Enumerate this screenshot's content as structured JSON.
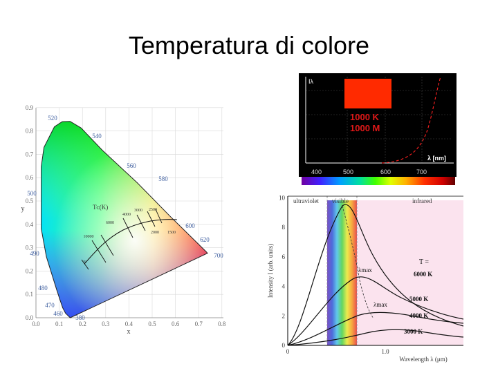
{
  "slide": {
    "title": "Temperatura di colore"
  },
  "cie_diagram": {
    "x_ticks": [
      "0.0",
      "0.1",
      "0.2",
      "0.3",
      "0.4",
      "0.5",
      "0.6",
      "0.7",
      "0.8"
    ],
    "y_ticks": [
      "0.0",
      "0.1",
      "0.2",
      "0.3",
      "0.4",
      "0.5",
      "0.6",
      "0.7",
      "0.8",
      "0.9"
    ],
    "xlabel": "x",
    "ylabel": "y",
    "locus_labels": [
      "520",
      "540",
      "560",
      "580",
      "600",
      "620",
      "700",
      "500",
      "490",
      "480",
      "470",
      "460",
      "380"
    ],
    "planckian_label": "Tᴄ(K)",
    "temperature_labels": [
      "10000",
      "6000",
      "4000",
      "3000",
      "2500",
      "2000",
      "1500",
      "∞"
    ]
  },
  "blackbody_panel": {
    "axis_y_label": "Iλ",
    "temperature": "1000 K",
    "mode": "1000 M",
    "axis_x_label": "λ [nm]",
    "ticks": [
      "400",
      "500",
      "600",
      "700"
    ],
    "swatch_color": "#ff2a00",
    "text_color": "#e01818"
  },
  "planck_chart": {
    "y_ticks": [
      "0",
      "2",
      "4",
      "6",
      "8",
      "10"
    ],
    "x_ticks": [
      "0",
      "1.0"
    ],
    "ylabel": "Intensity  I  (arb. units)",
    "xlabel": "Wavelength  λ  (μm)",
    "region_labels": [
      "ultraviolet",
      "visible",
      "infrared"
    ],
    "t_label": "T =",
    "curve_labels": [
      "6000 K",
      "5000 K",
      "4000 K",
      "3000 K"
    ],
    "lambda_max_label": "λmax"
  }
}
